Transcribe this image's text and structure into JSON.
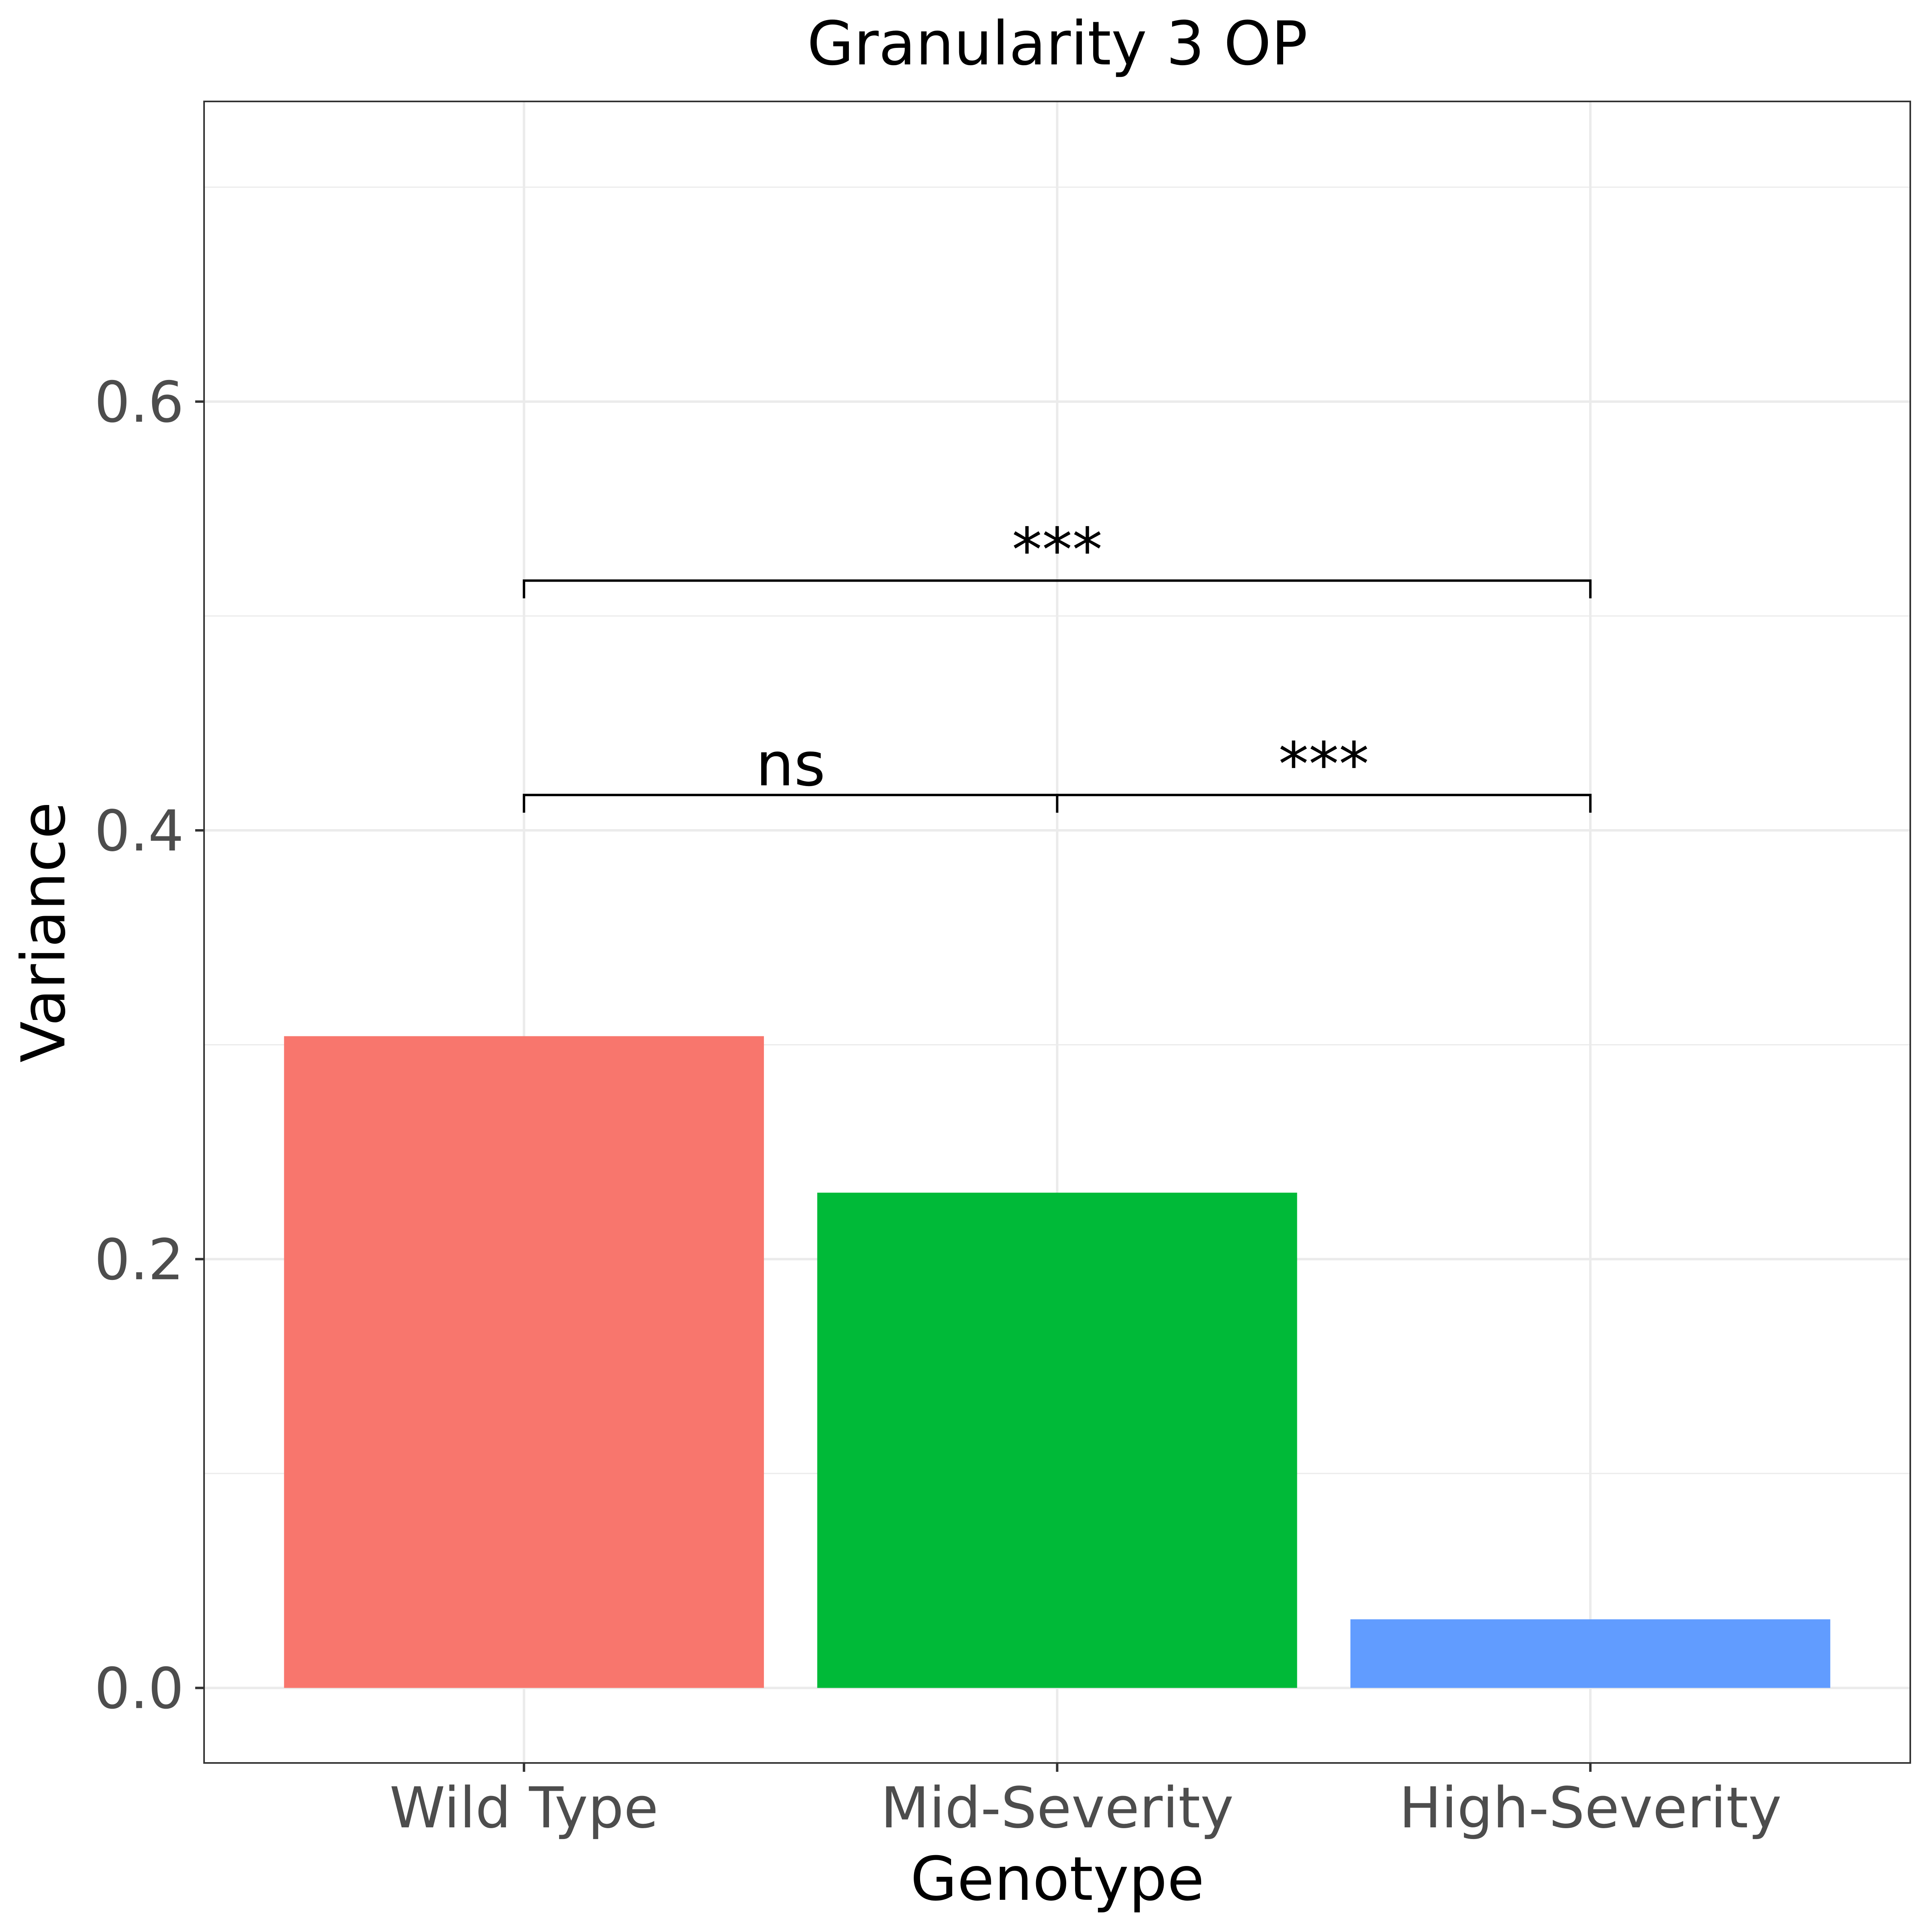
{
  "chart_data": {
    "type": "bar",
    "title": "Granularity 3 OP",
    "xlabel": "Genotype",
    "ylabel": "Variance",
    "categories": [
      "Wild Type",
      "Mid-Severity",
      "High-Severity"
    ],
    "values": [
      0.304,
      0.231,
      0.032
    ],
    "colors": [
      "#F8766D",
      "#00BA38",
      "#619CFF"
    ],
    "ylim": [
      -0.035,
      0.74
    ],
    "yticks": [
      0.0,
      0.2,
      0.4,
      0.6
    ],
    "ytick_labels": [
      "0.0",
      "0.2",
      "0.4",
      "0.6"
    ],
    "grid": true,
    "legend": "none",
    "annotations": [
      {
        "from": "Wild Type",
        "to": "Mid-Severity",
        "y": 0.4165,
        "label": "ns"
      },
      {
        "from": "Mid-Severity",
        "to": "High-Severity",
        "y": 0.4165,
        "label": "***"
      },
      {
        "from": "Wild Type",
        "to": "High-Severity",
        "y": 0.5165,
        "label": "***"
      }
    ]
  }
}
